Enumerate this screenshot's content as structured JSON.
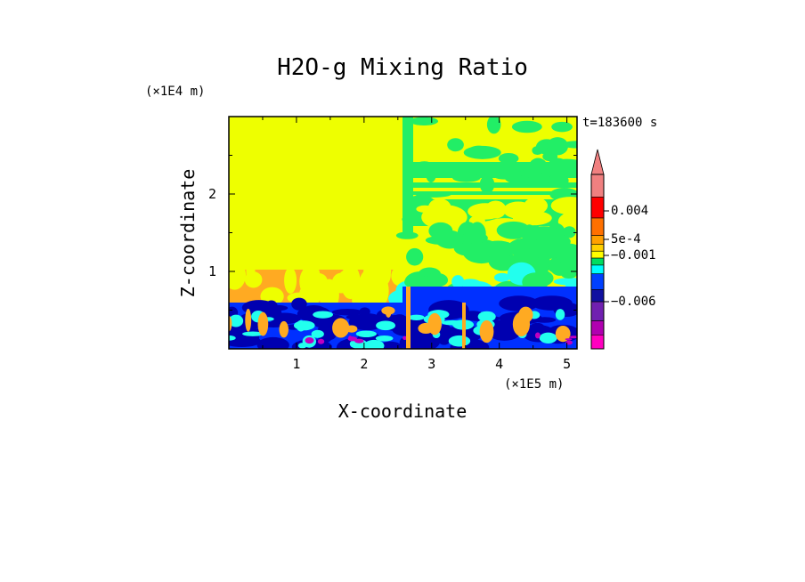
{
  "chart_data": {
    "type": "heatmap",
    "title": "H2O-g Mixing Ratio",
    "xlabel": "X-coordinate",
    "ylabel": "Z-coordinate",
    "x_scale_label": "(×1E5 m)",
    "y_scale_label": "(×1E4 m)",
    "time_label": "t=183600 s",
    "xlim": [
      0,
      5.15
    ],
    "ylim": [
      0,
      3.0
    ],
    "x_ticks": [
      1,
      2,
      3,
      4,
      5
    ],
    "y_ticks": [
      1,
      2
    ],
    "colorbar": {
      "labels": [
        {
          "text": "0.004",
          "value": 0.004
        },
        {
          "text": "5e-4",
          "value": 0.0005
        },
        {
          "text": "−0.001",
          "value": -0.001
        },
        {
          "text": "−0.006",
          "value": -0.006
        }
      ],
      "levels_top_to_bottom": [
        {
          "color": "#f08080"
        },
        {
          "color": "#ff0000"
        },
        {
          "color": "#ff7000"
        },
        {
          "color": "#ffa000"
        },
        {
          "color": "#ffd000"
        },
        {
          "color": "#ffff00"
        },
        {
          "color": "#00dd60"
        },
        {
          "color": "#00ffff"
        },
        {
          "color": "#0040ff"
        },
        {
          "color": "#1010a0"
        },
        {
          "color": "#7020b0"
        },
        {
          "color": "#b000b0"
        },
        {
          "color": "#ff00c0"
        }
      ]
    },
    "field_colors": {
      "background": "#eeff00",
      "green": "#22ee66",
      "orange": "#ffaa22",
      "cyan": "#22ffee",
      "blue": "#0030ff",
      "navy": "#0000b0",
      "magenta": "#c000c0"
    }
  }
}
